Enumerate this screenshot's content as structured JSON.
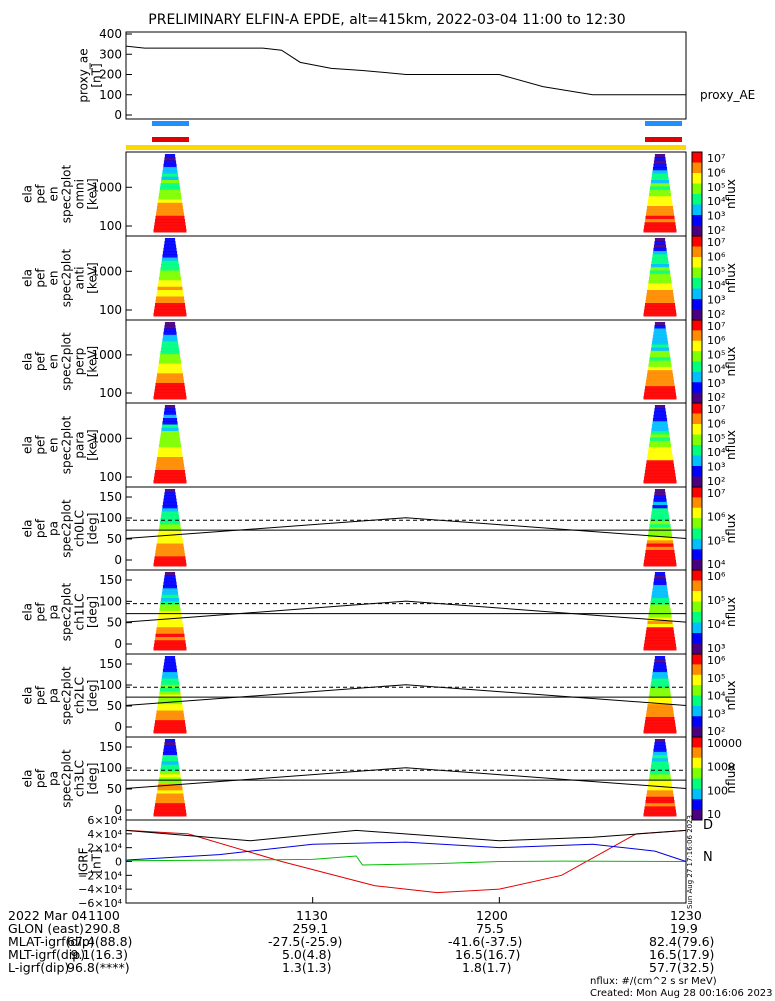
{
  "title": "PRELIMINARY ELFIN-A EPDE, alt=415km, 2022-03-04 11:00 to 12:30",
  "panels": [
    {
      "id": "proxy_ae",
      "ylabel": [
        "proxy_ae",
        "[nT]"
      ],
      "yticks": [
        "400",
        "300",
        "200",
        "100",
        "0"
      ],
      "legend": "proxy_AE"
    },
    {
      "id": "omni",
      "ylabel": [
        "ela",
        "pef",
        "en",
        "spec2plot",
        "omni",
        "[keV]"
      ],
      "yticks": [
        "1000",
        "100"
      ],
      "cb_label": "nflux",
      "cb_ticks": [
        "10⁷",
        "10⁶",
        "10⁵",
        "10⁴",
        "10³",
        "10²"
      ]
    },
    {
      "id": "anti",
      "ylabel": [
        "ela",
        "pef",
        "en",
        "spec2plot",
        "anti",
        "[keV]"
      ],
      "yticks": [
        "1000",
        "100"
      ],
      "cb_label": "nflux",
      "cb_ticks": [
        "10⁷",
        "10⁶",
        "10⁵",
        "10⁴",
        "10³",
        "10²"
      ]
    },
    {
      "id": "perp",
      "ylabel": [
        "ela",
        "pef",
        "en",
        "spec2plot",
        "perp",
        "[keV]"
      ],
      "yticks": [
        "1000",
        "100"
      ],
      "cb_label": "nflux",
      "cb_ticks": [
        "10⁷",
        "10⁶",
        "10⁵",
        "10⁴",
        "10³",
        "10²"
      ]
    },
    {
      "id": "para",
      "ylabel": [
        "ela",
        "pef",
        "en",
        "spec2plot",
        "para",
        "[keV]"
      ],
      "yticks": [
        "1000",
        "100"
      ],
      "cb_label": "nflux",
      "cb_ticks": [
        "10⁷",
        "10⁶",
        "10⁵",
        "10⁴",
        "10³",
        "10²"
      ]
    },
    {
      "id": "ch0LC",
      "ylabel": [
        "ela",
        "pef",
        "pa",
        "spec2plot",
        "ch0LC",
        "[deg]"
      ],
      "yticks": [
        "150",
        "100",
        "50",
        "0"
      ],
      "cb_label": "nflux",
      "cb_ticks": [
        "10⁷",
        "10⁶",
        "10⁵",
        "10⁴"
      ]
    },
    {
      "id": "ch1LC",
      "ylabel": [
        "ela",
        "pef",
        "pa",
        "spec2plot",
        "ch1LC",
        "[deg]"
      ],
      "yticks": [
        "150",
        "100",
        "50",
        "0"
      ],
      "cb_label": "nflux",
      "cb_ticks": [
        "10⁶",
        "10⁵",
        "10⁴",
        "10³"
      ]
    },
    {
      "id": "ch2LC",
      "ylabel": [
        "ela",
        "pef",
        "pa",
        "spec2plot",
        "ch2LC",
        "[deg]"
      ],
      "yticks": [
        "150",
        "100",
        "50",
        "0"
      ],
      "cb_label": "nflux",
      "cb_ticks": [
        "10⁶",
        "10⁵",
        "10⁴",
        "10³",
        "10²"
      ]
    },
    {
      "id": "ch3LC",
      "ylabel": [
        "ela",
        "pef",
        "pa",
        "spec2plot",
        "ch3LC",
        "[deg]"
      ],
      "yticks": [
        "150",
        "100",
        "50",
        "0"
      ],
      "cb_label": "nflux",
      "cb_ticks": [
        "10000",
        "1000",
        "100",
        "10"
      ]
    },
    {
      "id": "igrf",
      "ylabel": [
        "IGRF",
        "[nT]"
      ],
      "yticks": [
        "6×10⁴",
        "4×10⁴",
        "2×10⁴",
        "0",
        "−2×10⁴",
        "−4×10⁴",
        "−6×10⁴"
      ],
      "legend_d": "D",
      "legend_n": "N",
      "side_note": "Sun Aug 27 17:16:06 2023"
    }
  ],
  "footer": {
    "rows": [
      {
        "label": "2022 Mar 04",
        "vals": [
          "1100",
          "1130",
          "1200",
          "1230"
        ]
      },
      {
        "label": "GLON (east)",
        "vals": [
          "290.8",
          "259.1",
          "75.5",
          "19.9"
        ]
      },
      {
        "label": "MLAT-igrf(dip)",
        "vals": [
          "67.4(88.8)",
          "-27.5(-25.9)",
          "-41.6(-37.5)",
          "82.4(79.6)"
        ]
      },
      {
        "label": "MLT-igrf(dip)",
        "vals": [
          "9.1(16.3)",
          "5.0(4.8)",
          "16.5(16.7)",
          "16.5(17.9)"
        ]
      },
      {
        "label": "L-igrf(dip)",
        "vals": [
          "96.8(****)",
          "1.3(1.3)",
          "1.8(1.7)",
          "57.7(32.5)"
        ]
      }
    ],
    "units_note": "nflux: #/(cm^2 s sr MeV)",
    "created": "Created: Mon Aug 28 00:16:06 2023"
  },
  "chart_data": {
    "type": "line",
    "title": "PRELIMINARY ELFIN-A EPDE, alt=415km, 2022-03-04 11:00 to 12:30",
    "x_ticks": [
      "1100",
      "1130",
      "1200",
      "1230"
    ],
    "x_minutes": [
      0,
      30,
      60,
      90
    ],
    "series": [
      {
        "name": "proxy_AE",
        "x": [
          0,
          3,
          8,
          15,
          22,
          25,
          28,
          33,
          38,
          45,
          52,
          60,
          67,
          75,
          84,
          90
        ],
        "y": [
          340,
          330,
          330,
          330,
          330,
          320,
          260,
          230,
          220,
          200,
          200,
          200,
          140,
          100,
          100,
          100
        ]
      },
      {
        "name": "D",
        "x": [
          0,
          10,
          25,
          40,
          50,
          60,
          70,
          82,
          90
        ],
        "y": [
          45000,
          40000,
          0,
          -35000,
          -45000,
          -40000,
          -20000,
          40000,
          45000
        ]
      },
      {
        "name": "N",
        "x": [
          0,
          15,
          30,
          37,
          38,
          50,
          60,
          70,
          90
        ],
        "y": [
          1000,
          2000,
          3000,
          8000,
          -5000,
          -3000,
          0,
          500,
          0
        ]
      },
      {
        "name": "blue",
        "x": [
          0,
          15,
          30,
          45,
          60,
          75,
          85,
          90
        ],
        "y": [
          2000,
          10000,
          25000,
          28000,
          20000,
          25000,
          15000,
          0
        ]
      },
      {
        "name": "black",
        "x": [
          0,
          20,
          37,
          60,
          75,
          90
        ],
        "y": [
          45000,
          30000,
          45000,
          30000,
          35000,
          45000
        ]
      }
    ],
    "ylim_ae": [
      0,
      400
    ],
    "ylim_igrf": [
      -60000,
      60000
    ]
  }
}
